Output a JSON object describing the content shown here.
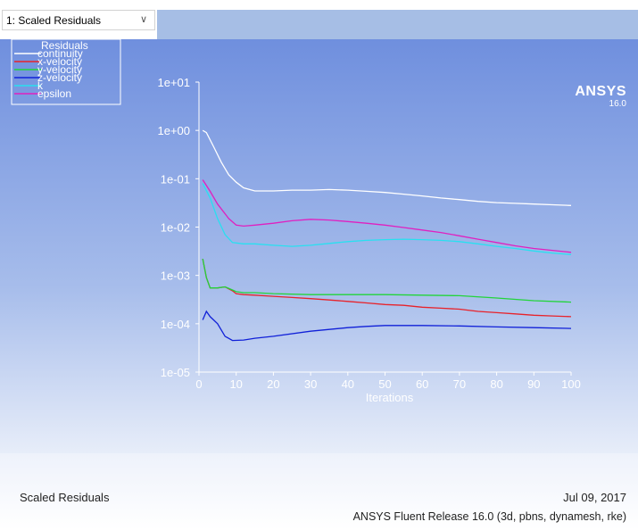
{
  "window": {
    "dropdown_value": "1: Scaled Residuals"
  },
  "brand": {
    "name": "ANSYS",
    "version": "16.0"
  },
  "footer": {
    "plot_title": "Scaled Residuals",
    "date": "Jul 09, 2017",
    "release": "ANSYS Fluent Release 16.0 (3d, pbns, dynamesh, rke)"
  },
  "chart_data": {
    "type": "line",
    "title": "",
    "xlabel": "Iterations",
    "ylabel": "",
    "yscale": "log",
    "xlim": [
      0,
      100
    ],
    "ylim": [
      1e-05,
      10
    ],
    "x_ticks": [
      "0",
      "10",
      "20",
      "30",
      "40",
      "50",
      "60",
      "70",
      "80",
      "90",
      "100"
    ],
    "y_ticks": [
      "1e+01",
      "1e+00",
      "1e-01",
      "1e-02",
      "1e-03",
      "1e-04",
      "1e-05"
    ],
    "legend_title": "Residuals",
    "legend_position": "top-left",
    "series": [
      {
        "name": "continuity",
        "color": "#ffffff",
        "points": [
          [
            1,
            1.0
          ],
          [
            2,
            0.9
          ],
          [
            4,
            0.45
          ],
          [
            6,
            0.22
          ],
          [
            8,
            0.12
          ],
          [
            10,
            0.085
          ],
          [
            12,
            0.065
          ],
          [
            15,
            0.056
          ],
          [
            20,
            0.056
          ],
          [
            25,
            0.058
          ],
          [
            30,
            0.058
          ],
          [
            35,
            0.06
          ],
          [
            40,
            0.058
          ],
          [
            45,
            0.055
          ],
          [
            50,
            0.052
          ],
          [
            55,
            0.048
          ],
          [
            60,
            0.044
          ],
          [
            65,
            0.04
          ],
          [
            70,
            0.037
          ],
          [
            75,
            0.034
          ],
          [
            80,
            0.032
          ],
          [
            85,
            0.031
          ],
          [
            90,
            0.03
          ],
          [
            95,
            0.029
          ],
          [
            100,
            0.028
          ]
        ]
      },
      {
        "name": "x-velocity",
        "color": "#e8222a",
        "points": [
          [
            1,
            0.0022
          ],
          [
            2,
            0.0009
          ],
          [
            3,
            0.00055
          ],
          [
            5,
            0.00055
          ],
          [
            7,
            0.00058
          ],
          [
            9,
            0.00048
          ],
          [
            10,
            0.00042
          ],
          [
            12,
            0.0004
          ],
          [
            15,
            0.00039
          ],
          [
            20,
            0.00037
          ],
          [
            25,
            0.00035
          ],
          [
            30,
            0.00033
          ],
          [
            35,
            0.00031
          ],
          [
            40,
            0.00029
          ],
          [
            45,
            0.00027
          ],
          [
            50,
            0.00025
          ],
          [
            55,
            0.00024
          ],
          [
            60,
            0.00022
          ],
          [
            65,
            0.00021
          ],
          [
            70,
            0.0002
          ],
          [
            75,
            0.00018
          ],
          [
            80,
            0.00017
          ],
          [
            85,
            0.00016
          ],
          [
            90,
            0.00015
          ],
          [
            95,
            0.000145
          ],
          [
            100,
            0.00014
          ]
        ]
      },
      {
        "name": "y-velocity",
        "color": "#22d43a",
        "points": [
          [
            1,
            0.0022
          ],
          [
            2,
            0.0009
          ],
          [
            3,
            0.00055
          ],
          [
            5,
            0.00055
          ],
          [
            7,
            0.00058
          ],
          [
            9,
            0.0005
          ],
          [
            10,
            0.00046
          ],
          [
            12,
            0.00044
          ],
          [
            15,
            0.00044
          ],
          [
            20,
            0.00042
          ],
          [
            30,
            0.0004
          ],
          [
            40,
            0.0004
          ],
          [
            50,
            0.0004
          ],
          [
            60,
            0.00039
          ],
          [
            70,
            0.00038
          ],
          [
            80,
            0.00034
          ],
          [
            90,
            0.0003
          ],
          [
            100,
            0.00028
          ]
        ]
      },
      {
        "name": "z-velocity",
        "color": "#1020d8",
        "points": [
          [
            1,
            0.00012
          ],
          [
            2,
            0.00018
          ],
          [
            3,
            0.00014
          ],
          [
            5,
            0.0001
          ],
          [
            7,
            5.5e-05
          ],
          [
            9,
            4.5e-05
          ],
          [
            12,
            4.6e-05
          ],
          [
            15,
            5e-05
          ],
          [
            20,
            5.5e-05
          ],
          [
            30,
            7e-05
          ],
          [
            40,
            8.3e-05
          ],
          [
            45,
            8.8e-05
          ],
          [
            50,
            9.2e-05
          ],
          [
            60,
            9.2e-05
          ],
          [
            70,
            9e-05
          ],
          [
            80,
            8.6e-05
          ],
          [
            90,
            8.3e-05
          ],
          [
            100,
            8e-05
          ]
        ]
      },
      {
        "name": "k",
        "color": "#28e0f0",
        "points": [
          [
            1,
            0.08
          ],
          [
            3,
            0.04
          ],
          [
            5,
            0.015
          ],
          [
            7,
            0.007
          ],
          [
            9,
            0.0048
          ],
          [
            12,
            0.0045
          ],
          [
            15,
            0.0045
          ],
          [
            20,
            0.0042
          ],
          [
            25,
            0.004
          ],
          [
            30,
            0.0042
          ],
          [
            35,
            0.0046
          ],
          [
            40,
            0.005
          ],
          [
            45,
            0.0053
          ],
          [
            50,
            0.0055
          ],
          [
            55,
            0.0056
          ],
          [
            60,
            0.0055
          ],
          [
            65,
            0.0053
          ],
          [
            70,
            0.005
          ],
          [
            75,
            0.0045
          ],
          [
            80,
            0.004
          ],
          [
            85,
            0.0036
          ],
          [
            90,
            0.0032
          ],
          [
            95,
            0.0029
          ],
          [
            100,
            0.0027
          ]
        ]
      },
      {
        "name": "epsilon",
        "color": "#e020c0",
        "points": [
          [
            1,
            0.095
          ],
          [
            3,
            0.055
          ],
          [
            5,
            0.03
          ],
          [
            8,
            0.015
          ],
          [
            10,
            0.011
          ],
          [
            12,
            0.0105
          ],
          [
            15,
            0.011
          ],
          [
            20,
            0.012
          ],
          [
            25,
            0.0135
          ],
          [
            30,
            0.0145
          ],
          [
            35,
            0.014
          ],
          [
            40,
            0.013
          ],
          [
            45,
            0.012
          ],
          [
            50,
            0.011
          ],
          [
            55,
            0.0098
          ],
          [
            60,
            0.0087
          ],
          [
            65,
            0.0077
          ],
          [
            70,
            0.0066
          ],
          [
            75,
            0.0056
          ],
          [
            80,
            0.0048
          ],
          [
            85,
            0.0041
          ],
          [
            90,
            0.0036
          ],
          [
            95,
            0.0033
          ],
          [
            100,
            0.003
          ]
        ]
      }
    ]
  }
}
